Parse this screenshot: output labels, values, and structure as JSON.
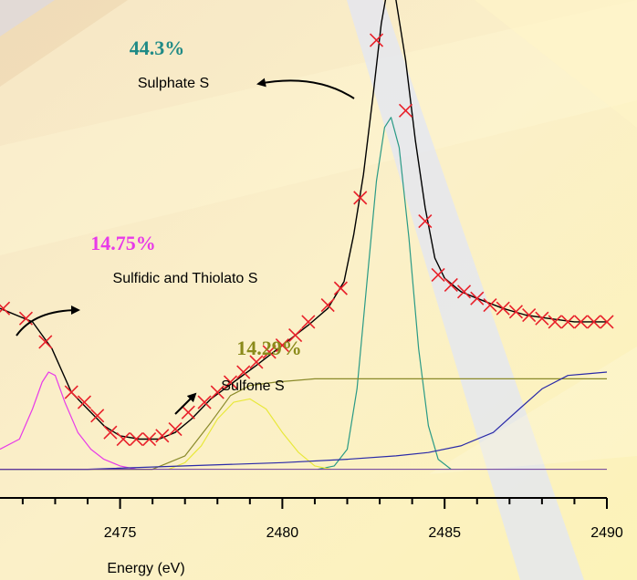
{
  "chart_data": {
    "type": "line",
    "xlabel": "Energy (eV)",
    "ylabel": "",
    "xlim": [
      2471.3,
      2490
    ],
    "ylim": [
      -0.05,
      1.4
    ],
    "x_ticks": [
      2475,
      2480,
      2485,
      2490
    ],
    "x_tick_labels": [
      "2475",
      "2480",
      "2485",
      "2490"
    ],
    "grid": false,
    "series": [
      {
        "kind": "data-points",
        "marker": "x",
        "color": "#e8202a",
        "points": [
          [
            2471.4,
            0.48
          ],
          [
            2472.1,
            0.45
          ],
          [
            2472.7,
            0.38
          ],
          [
            2473.5,
            0.23
          ],
          [
            2473.9,
            0.2
          ],
          [
            2474.3,
            0.16
          ],
          [
            2474.7,
            0.11
          ],
          [
            2475.1,
            0.09
          ],
          [
            2475.5,
            0.09
          ],
          [
            2475.9,
            0.09
          ],
          [
            2476.3,
            0.1
          ],
          [
            2476.7,
            0.12
          ],
          [
            2477.1,
            0.17
          ],
          [
            2477.6,
            0.2
          ],
          [
            2478.0,
            0.23
          ],
          [
            2478.4,
            0.26
          ],
          [
            2478.8,
            0.29
          ],
          [
            2479.2,
            0.32
          ],
          [
            2479.6,
            0.35
          ],
          [
            2480.0,
            0.37
          ],
          [
            2480.4,
            0.4
          ],
          [
            2480.8,
            0.44
          ],
          [
            2481.4,
            0.49
          ],
          [
            2481.8,
            0.54
          ],
          [
            2482.4,
            0.81
          ],
          [
            2482.9,
            1.28
          ],
          [
            2483.8,
            1.07
          ],
          [
            2484.4,
            0.74
          ],
          [
            2484.8,
            0.58
          ],
          [
            2485.2,
            0.55
          ],
          [
            2485.6,
            0.53
          ],
          [
            2486.0,
            0.51
          ],
          [
            2486.4,
            0.49
          ],
          [
            2486.8,
            0.48
          ],
          [
            2487.2,
            0.47
          ],
          [
            2487.6,
            0.46
          ],
          [
            2488.0,
            0.45
          ],
          [
            2488.4,
            0.44
          ],
          [
            2488.8,
            0.44
          ],
          [
            2489.2,
            0.44
          ],
          [
            2489.6,
            0.44
          ],
          [
            2490.0,
            0.44
          ]
        ]
      },
      {
        "kind": "fit-curve",
        "color": "#000000",
        "points": [
          [
            2471.3,
            0.48
          ],
          [
            2472.3,
            0.44
          ],
          [
            2472.9,
            0.36
          ],
          [
            2473.5,
            0.23
          ],
          [
            2474.0,
            0.18
          ],
          [
            2474.5,
            0.13
          ],
          [
            2475.0,
            0.1
          ],
          [
            2475.6,
            0.09
          ],
          [
            2476.2,
            0.09
          ],
          [
            2476.7,
            0.11
          ],
          [
            2477.2,
            0.15
          ],
          [
            2477.8,
            0.21
          ],
          [
            2478.5,
            0.26
          ],
          [
            2479.2,
            0.31
          ],
          [
            2480.0,
            0.37
          ],
          [
            2480.8,
            0.43
          ],
          [
            2481.4,
            0.48
          ],
          [
            2481.9,
            0.56
          ],
          [
            2482.2,
            0.7
          ],
          [
            2482.5,
            0.88
          ],
          [
            2482.8,
            1.12
          ],
          [
            2483.05,
            1.33
          ],
          [
            2483.25,
            1.44
          ],
          [
            2483.5,
            1.4
          ],
          [
            2483.8,
            1.22
          ],
          [
            2484.1,
            0.98
          ],
          [
            2484.4,
            0.78
          ],
          [
            2484.7,
            0.63
          ],
          [
            2485.0,
            0.57
          ],
          [
            2485.5,
            0.53
          ],
          [
            2486.0,
            0.51
          ],
          [
            2486.8,
            0.48
          ],
          [
            2487.5,
            0.46
          ],
          [
            2488.2,
            0.45
          ],
          [
            2489.0,
            0.44
          ],
          [
            2490.0,
            0.44
          ]
        ]
      },
      {
        "kind": "component",
        "name": "Sulphate S",
        "color": "#2a9a86",
        "points": [
          [
            2481.1,
            0.0
          ],
          [
            2481.6,
            0.01
          ],
          [
            2482.0,
            0.06
          ],
          [
            2482.3,
            0.24
          ],
          [
            2482.6,
            0.55
          ],
          [
            2482.9,
            0.86
          ],
          [
            2483.15,
            1.02
          ],
          [
            2483.35,
            1.05
          ],
          [
            2483.6,
            0.96
          ],
          [
            2483.9,
            0.69
          ],
          [
            2484.2,
            0.36
          ],
          [
            2484.5,
            0.13
          ],
          [
            2484.8,
            0.03
          ],
          [
            2485.2,
            0.0
          ]
        ]
      },
      {
        "kind": "component",
        "name": "Sulfone S",
        "color": "#e8e83a",
        "points": [
          [
            2476.5,
            0.0
          ],
          [
            2477.0,
            0.02
          ],
          [
            2477.5,
            0.07
          ],
          [
            2478.0,
            0.15
          ],
          [
            2478.5,
            0.2
          ],
          [
            2479.0,
            0.21
          ],
          [
            2479.5,
            0.18
          ],
          [
            2480.0,
            0.11
          ],
          [
            2480.5,
            0.05
          ],
          [
            2481.0,
            0.01
          ],
          [
            2481.5,
            0.0
          ]
        ]
      },
      {
        "kind": "component",
        "name": "Sulfidic and Thiolato S",
        "color": "#e83ae8",
        "points": [
          [
            2471.3,
            0.06
          ],
          [
            2471.9,
            0.09
          ],
          [
            2472.3,
            0.18
          ],
          [
            2472.6,
            0.26
          ],
          [
            2472.8,
            0.29
          ],
          [
            2473.0,
            0.28
          ],
          [
            2473.3,
            0.2
          ],
          [
            2473.7,
            0.11
          ],
          [
            2474.1,
            0.06
          ],
          [
            2474.5,
            0.03
          ],
          [
            2475.0,
            0.01
          ],
          [
            2475.5,
            0.0
          ]
        ]
      },
      {
        "kind": "step-background",
        "color": "#8a8a2a",
        "points": [
          [
            2471.3,
            0.0
          ],
          [
            2476.0,
            0.0
          ],
          [
            2477.0,
            0.04
          ],
          [
            2477.8,
            0.14
          ],
          [
            2478.4,
            0.22
          ],
          [
            2479.0,
            0.25
          ],
          [
            2479.8,
            0.26
          ],
          [
            2481.0,
            0.27
          ],
          [
            2483.0,
            0.27
          ],
          [
            2486.0,
            0.27
          ],
          [
            2490.0,
            0.27
          ]
        ]
      },
      {
        "kind": "step-background",
        "color": "#2a2aa8",
        "points": [
          [
            2471.3,
            0.0
          ],
          [
            2474.0,
            0.0
          ],
          [
            2477.0,
            0.01
          ],
          [
            2480.0,
            0.02
          ],
          [
            2482.0,
            0.03
          ],
          [
            2483.5,
            0.04
          ],
          [
            2484.5,
            0.05
          ],
          [
            2485.5,
            0.07
          ],
          [
            2486.5,
            0.11
          ],
          [
            2487.3,
            0.18
          ],
          [
            2488.0,
            0.24
          ],
          [
            2488.8,
            0.28
          ],
          [
            2490.0,
            0.29
          ]
        ]
      }
    ],
    "annotations": [
      {
        "id": "sulphate",
        "percent": "44.3%",
        "label": "Sulphate S",
        "color": "#1f8a86"
      },
      {
        "id": "sulfidic",
        "percent": "14.75%",
        "label": "Sulfidic and Thiolato S",
        "color": "#e83ae8"
      },
      {
        "id": "sulfone",
        "percent": "14.29%",
        "label": "Sulfone S",
        "color": "#8a8a1a"
      }
    ]
  }
}
